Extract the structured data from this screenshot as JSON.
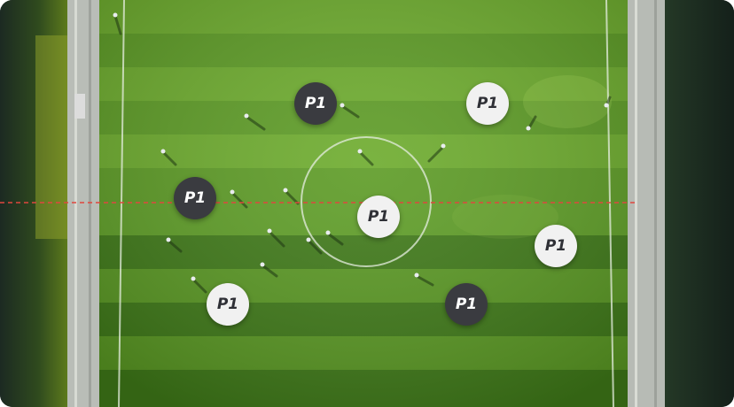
{
  "markers": [
    {
      "label": "P1",
      "style": "dark"
    },
    {
      "label": "P1",
      "style": "light"
    },
    {
      "label": "P1",
      "style": "dark"
    },
    {
      "label": "P1",
      "style": "light"
    },
    {
      "label": "P1",
      "style": "light"
    },
    {
      "label": "P1",
      "style": "light"
    },
    {
      "label": "P1",
      "style": "dark"
    }
  ],
  "colors": {
    "grass_light": "#6aa82a",
    "grass_dark": "#4e8a1f",
    "divider_line": "#e0463e",
    "marker_dark": "#3a3b40",
    "marker_light": "#f1f1f1"
  }
}
